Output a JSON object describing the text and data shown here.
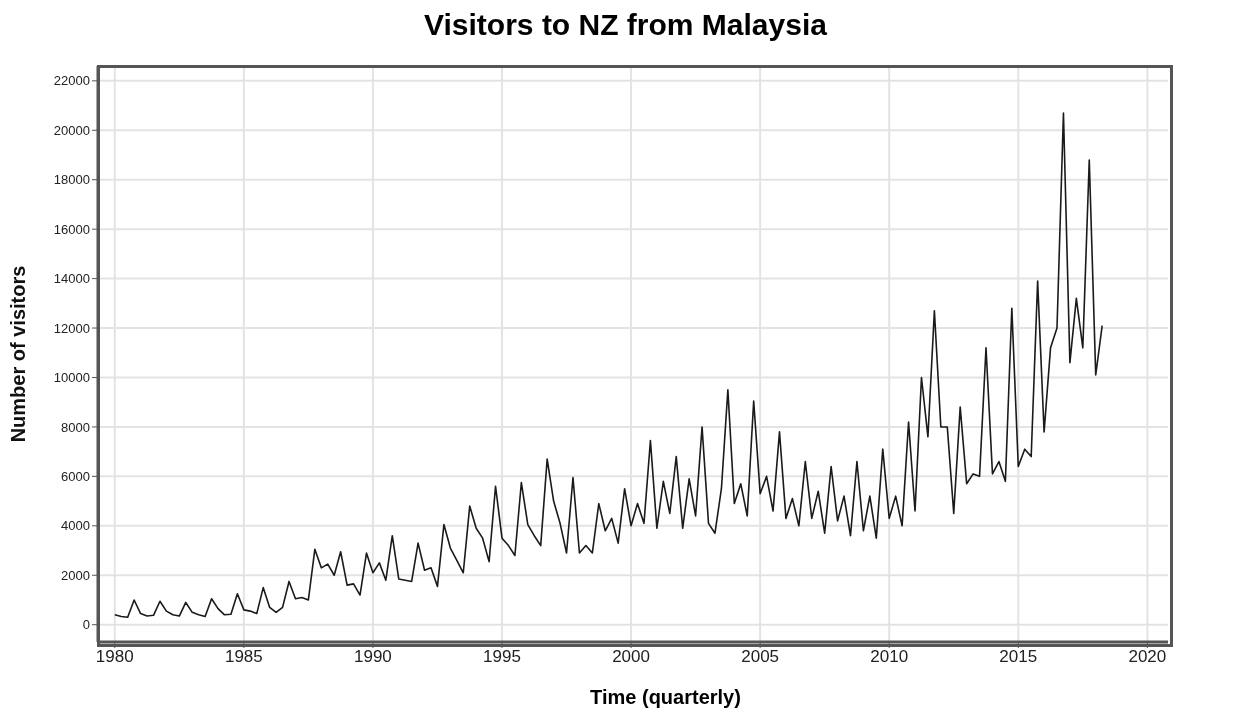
{
  "chart_data": {
    "type": "line",
    "title": "Visitors to NZ from Malaysia",
    "xlabel": "Time (quarterly)",
    "ylabel": "Number of visitors",
    "x": [
      1980,
      1980.25,
      1980.5,
      1980.75,
      1981,
      1981.25,
      1981.5,
      1981.75,
      1982,
      1982.25,
      1982.5,
      1982.75,
      1983,
      1983.25,
      1983.5,
      1983.75,
      1984,
      1984.25,
      1984.5,
      1984.75,
      1985,
      1985.25,
      1985.5,
      1985.75,
      1986,
      1986.25,
      1986.5,
      1986.75,
      1987,
      1987.25,
      1987.5,
      1987.75,
      1988,
      1988.25,
      1988.5,
      1988.75,
      1989,
      1989.25,
      1989.5,
      1989.75,
      1990,
      1990.25,
      1990.5,
      1990.75,
      1991,
      1991.25,
      1991.5,
      1991.75,
      1992,
      1992.25,
      1992.5,
      1992.75,
      1993,
      1993.25,
      1993.5,
      1993.75,
      1994,
      1994.25,
      1994.5,
      1994.75,
      1995,
      1995.25,
      1995.5,
      1995.75,
      1996,
      1996.25,
      1996.5,
      1996.75,
      1997,
      1997.25,
      1997.5,
      1997.75,
      1998,
      1998.25,
      1998.5,
      1998.75,
      1999,
      1999.25,
      1999.5,
      1999.75,
      2000,
      2000.25,
      2000.5,
      2000.75,
      2001,
      2001.25,
      2001.5,
      2001.75,
      2002,
      2002.25,
      2002.5,
      2002.75,
      2003,
      2003.25,
      2003.5,
      2003.75,
      2004,
      2004.25,
      2004.5,
      2004.75,
      2005,
      2005.25,
      2005.5,
      2005.75,
      2006,
      2006.25,
      2006.5,
      2006.75,
      2007,
      2007.25,
      2007.5,
      2007.75,
      2008,
      2008.25,
      2008.5,
      2008.75,
      2009,
      2009.25,
      2009.5,
      2009.75,
      2010,
      2010.25,
      2010.5,
      2010.75,
      2011,
      2011.25,
      2011.5,
      2011.75,
      2012,
      2012.25,
      2012.5,
      2012.75,
      2013,
      2013.25,
      2013.5,
      2013.75,
      2014,
      2014.25,
      2014.5,
      2014.75,
      2015,
      2015.25,
      2015.5,
      2015.75,
      2016,
      2016.25,
      2016.5,
      2016.75,
      2017,
      2017.25,
      2017.5,
      2017.75,
      2018,
      2018.25
    ],
    "series": [
      {
        "color": "#1a1a1a",
        "values": [
          400,
          330,
          300,
          1000,
          450,
          350,
          380,
          950,
          550,
          400,
          350,
          900,
          500,
          400,
          330,
          1050,
          650,
          400,
          420,
          1250,
          600,
          550,
          450,
          1500,
          700,
          500,
          700,
          1750,
          1050,
          1100,
          1000,
          3050,
          2300,
          2450,
          2000,
          2950,
          1600,
          1650,
          1200,
          2900,
          2100,
          2500,
          1800,
          3600,
          1850,
          1800,
          1750,
          3300,
          2200,
          2300,
          1550,
          4050,
          3100,
          2600,
          2100,
          4800,
          3900,
          3500,
          2550,
          5600,
          3500,
          3200,
          2800,
          5750,
          4050,
          3600,
          3200,
          6700,
          5000,
          4100,
          2900,
          5950,
          2900,
          3200,
          2900,
          4900,
          3800,
          4300,
          3300,
          5500,
          4000,
          4900,
          4100,
          7450,
          3900,
          5800,
          4500,
          6800,
          3900,
          5900,
          4400,
          8000,
          4100,
          3700,
          5500,
          9500,
          4900,
          5700,
          4400,
          9050,
          5300,
          6000,
          4600,
          7800,
          4300,
          5100,
          4000,
          6600,
          4300,
          5400,
          3700,
          6400,
          4200,
          5200,
          3600,
          6600,
          3800,
          5200,
          3500,
          7100,
          4300,
          5200,
          4000,
          8200,
          4600,
          10000,
          7600,
          12700,
          8000,
          8000,
          4500,
          8800,
          5700,
          6100,
          6000,
          11200,
          6100,
          6600,
          5800,
          12800,
          6400,
          7100,
          6800,
          13900,
          7800,
          11200,
          12000,
          20700,
          10600,
          13200,
          11200,
          18800,
          10100,
          12100
        ]
      }
    ],
    "xlim": [
      1979.35,
      2020.8
    ],
    "xticks": [
      1980,
      1985,
      1990,
      1995,
      2000,
      2005,
      2010,
      2015,
      2020
    ],
    "ylim": [
      -700,
      22600
    ],
    "yticks": [
      0,
      2000,
      4000,
      6000,
      8000,
      10000,
      12000,
      14000,
      16000,
      18000,
      20000,
      22000
    ],
    "grid": true,
    "marker": "none",
    "line_style": "solid"
  }
}
